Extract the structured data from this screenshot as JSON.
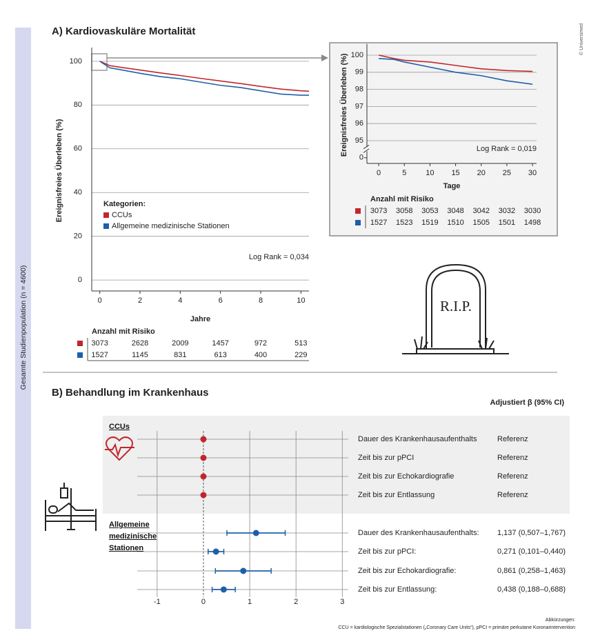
{
  "side_label": "Gesamte Studienpopulation (n = 4600)",
  "copyright": "© Universimed",
  "rip_text": "R.I.P.",
  "footnote": {
    "heading": "Abkürzungen:",
    "text": "CCU = kardiologische Spezialstationen („Coronary Care Units“), pPCI = primäre perkutane Koronarintervention"
  },
  "chart_data": [
    {
      "type": "line",
      "title": "A) Kardiovaskuläre Mortalität",
      "y_label": "Ereignisfreies Überleben (%)",
      "x_label": "Jahre",
      "x": [
        0,
        0.5,
        1,
        2,
        3,
        4,
        5,
        6,
        7,
        8,
        9,
        10,
        10.4
      ],
      "series": [
        {
          "name": "CCUs",
          "color": "#c0272d",
          "values": [
            100,
            98,
            97.3,
            96,
            94.7,
            93.5,
            92.2,
            91,
            89.8,
            88.5,
            87.3,
            86.5,
            86.3
          ]
        },
        {
          "name": "Allgemeine medizinische Stationen",
          "color": "#1f5fa8",
          "values": [
            100,
            97,
            96.2,
            94.5,
            93,
            92,
            90.5,
            89,
            88,
            86.5,
            85,
            84.5,
            84.5
          ]
        }
      ],
      "xlim": [
        -0.4,
        10.4
      ],
      "ylim": [
        -5,
        105
      ],
      "xticks": [
        0,
        2,
        4,
        6,
        8,
        10
      ],
      "yticks": [
        0,
        20,
        40,
        60,
        80,
        100
      ],
      "grid": true,
      "legend_title": "Kategorien:",
      "annotation": "Log Rank = 0,034",
      "risk_table": {
        "title": "Anzahl mit Risiko",
        "x": [
          0,
          2,
          4,
          6,
          8,
          10
        ],
        "rows": [
          [
            3073,
            2628,
            2009,
            1457,
            972,
            513
          ],
          [
            1527,
            1145,
            831,
            613,
            400,
            229
          ]
        ]
      }
    },
    {
      "type": "line",
      "y_label": "Ereignisfreies Überleben (%)",
      "x_label": "Tage",
      "x": [
        0,
        3,
        5,
        10,
        15,
        20,
        25,
        30
      ],
      "series": [
        {
          "color": "#c0272d",
          "values": [
            100,
            99.8,
            99.7,
            99.6,
            99.4,
            99.2,
            99.1,
            99.05
          ]
        },
        {
          "color": "#1f5fa8",
          "values": [
            99.8,
            99.75,
            99.6,
            99.3,
            99,
            98.8,
            98.5,
            98.3
          ]
        }
      ],
      "xlim": [
        -2.3,
        30.8
      ],
      "ylim": [
        95,
        100.5
      ],
      "xticks": [
        0,
        5,
        10,
        15,
        20,
        25,
        30
      ],
      "yticks": [
        0,
        95,
        96,
        97,
        98,
        99,
        100
      ],
      "grid": true,
      "axis_break": true,
      "annotation": "Log Rank = 0,019",
      "risk_table": {
        "title": "Anzahl mit Risiko",
        "x": [
          0,
          5,
          10,
          15,
          20,
          25,
          30
        ],
        "rows": [
          [
            3073,
            3058,
            3053,
            3048,
            3042,
            3032,
            3030
          ],
          [
            1527,
            1523,
            1519,
            1510,
            1505,
            1501,
            1498
          ]
        ]
      }
    },
    {
      "type": "forest",
      "title": "B) Behandlung im Krankenhaus",
      "value_header": "Adjustiert β (95% CI)",
      "xlim": [
        -1.43,
        3.13
      ],
      "xticks": [
        -1,
        0,
        1,
        2,
        3
      ],
      "grid": true,
      "groups": [
        {
          "name": "CCUs",
          "color": "#c0272d",
          "categories": [
            "Dauer des Krankenhausaufenthalts",
            "Zeit bis zur pPCI",
            "Zeit bis zur Echokardiografie",
            "Zeit bis zur Entlassung"
          ],
          "values": [
            0,
            0,
            0,
            0
          ],
          "value_labels": [
            "Referenz",
            "Referenz",
            "Referenz",
            "Referenz"
          ]
        },
        {
          "name": "Allgemeine medizinische Stationen",
          "color": "#1f5fa8",
          "categories": [
            "Dauer des Krankenhausaufenthalts:",
            "Zeit bis zur pPCI:",
            "Zeit bis zur Echokardiografie:",
            "Zeit bis zur Entlassung:"
          ],
          "values": [
            1.137,
            0.271,
            0.861,
            0.438
          ],
          "ci_low": [
            0.507,
            0.101,
            0.258,
            0.188
          ],
          "ci_high": [
            1.767,
            0.44,
            1.463,
            0.688
          ],
          "value_labels": [
            "1,137 (0,507–1,767)",
            "0,271 (0,101–0,440)",
            "0,861 (0,258–1,463)",
            "0,438 (0,188–0,688)"
          ]
        }
      ]
    }
  ]
}
